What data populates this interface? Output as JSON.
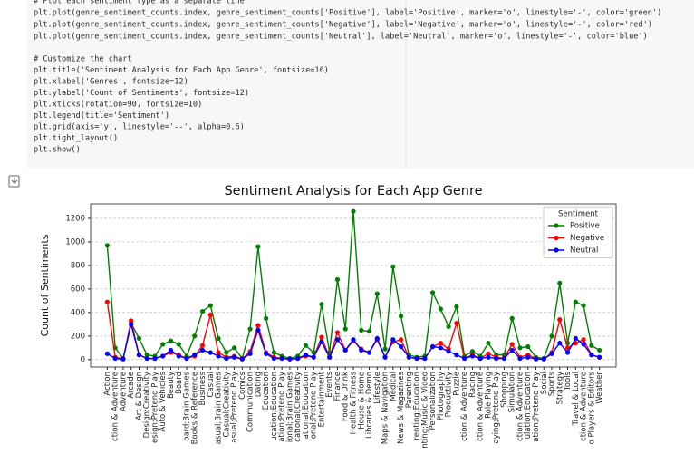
{
  "code": {
    "lines": [
      "# Plot each sentiment type as a separate line",
      "plt.plot(genre_sentiment_counts.index, genre_sentiment_counts['Positive'], label='Positive', marker='o', linestyle='-', color='green')",
      "plt.plot(genre_sentiment_counts.index, genre_sentiment_counts['Negative'], label='Negative', marker='o', linestyle='-', color='red')",
      "plt.plot(genre_sentiment_counts.index, genre_sentiment_counts['Neutral'], label='Neutral', marker='o', linestyle='-', color='blue')",
      "# Customize the chart",
      "plt.title('Sentiment Analysis for Each App Genre', fontsize=16)",
      "plt.xlabel('Genres', fontsize=12)",
      "plt.ylabel('Count of Sentiments', fontsize=12)",
      "plt.xticks(rotation=90, fontsize=10)",
      "plt.legend(title='Sentiment')",
      "plt.grid(axis='y', linestyle='--', alpha=0.6)",
      "plt.tight_layout()",
      "plt.show()"
    ]
  },
  "chart_data": {
    "type": "line",
    "title": "Sentiment Analysis for Each App Genre",
    "ylabel": "Count of Sentiments",
    "legend_title": "Sentiment",
    "legend": "upper right",
    "grid": true,
    "categories": [
      "Action",
      "ction & Adventure",
      "Adventure",
      "Arcade",
      "Art & Design",
      "Design;Creativity",
      "esign;Pretend Play",
      "Auto & Vehicles",
      "Beauty",
      "Board",
      "oard;Brain Games",
      "Books & Reference",
      "Business",
      "Casual",
      "asual;Brain Games",
      "Casual;Creativity",
      "asual;Pretend Play",
      "Comics",
      "Communication",
      "Dating",
      "Education",
      "ucation;Education",
      "ation;Pretend Play",
      "ional;Brain Games",
      "cational;Creativity",
      "ational;Education",
      "ional;Pretend Play",
      "Entertainment",
      "Events",
      "Finance",
      "Food & Drink",
      "Health & Fitness",
      "House & Home",
      "Libraries & Demo",
      "Lifestyle",
      "Maps & Navigation",
      "Medical",
      "News & Magazines",
      "Parenting",
      "renting;Education",
      "nting;Music & Video",
      "Personalization",
      "Photography",
      "Productivity",
      "Puzzle",
      "ction & Adventure",
      "Racing",
      "ction & Adventure",
      "Role Playing",
      "aying;Pretend Play",
      "Shopping",
      "Simulation",
      "ction & Adventure",
      "ulation;Education",
      "ation;Pretend Play",
      "Social",
      "Sports",
      "Strategy",
      "Tools",
      "Travel & Local",
      "ction & Adventure",
      "o Players & Editors",
      "Weather"
    ],
    "series": [
      {
        "name": "Positive",
        "color": "green",
        "values": [
          970,
          100,
          10,
          310,
          180,
          40,
          30,
          130,
          160,
          130,
          30,
          200,
          410,
          460,
          180,
          60,
          100,
          10,
          260,
          960,
          350,
          60,
          30,
          10,
          30,
          120,
          60,
          470,
          60,
          680,
          260,
          1260,
          250,
          240,
          560,
          90,
          790,
          370,
          40,
          20,
          30,
          570,
          430,
          280,
          450,
          30,
          70,
          30,
          140,
          40,
          40,
          350,
          100,
          110,
          20,
          10,
          200,
          650,
          140,
          490,
          460,
          120,
          80
        ]
      },
      {
        "name": "Negative",
        "color": "red",
        "values": [
          490,
          20,
          5,
          330,
          40,
          10,
          10,
          30,
          60,
          40,
          10,
          30,
          120,
          380,
          60,
          20,
          30,
          5,
          70,
          290,
          60,
          20,
          10,
          5,
          10,
          30,
          20,
          190,
          20,
          230,
          80,
          160,
          90,
          60,
          170,
          20,
          150,
          170,
          20,
          10,
          10,
          110,
          140,
          90,
          310,
          10,
          40,
          10,
          50,
          20,
          10,
          130,
          20,
          40,
          10,
          5,
          60,
          340,
          100,
          140,
          170,
          40,
          20
        ]
      },
      {
        "name": "Neutral",
        "color": "blue",
        "values": [
          50,
          10,
          5,
          300,
          40,
          10,
          10,
          30,
          80,
          30,
          10,
          40,
          80,
          60,
          30,
          10,
          20,
          5,
          50,
          250,
          50,
          10,
          10,
          5,
          10,
          40,
          20,
          150,
          20,
          170,
          80,
          170,
          80,
          60,
          180,
          20,
          170,
          110,
          20,
          10,
          10,
          110,
          100,
          70,
          40,
          10,
          30,
          10,
          20,
          10,
          10,
          80,
          10,
          20,
          5,
          5,
          50,
          140,
          60,
          180,
          130,
          40,
          20
        ]
      }
    ],
    "ylim": [
      -63,
      1323
    ],
    "yticks": [
      0,
      200,
      400,
      600,
      800,
      1000,
      1200
    ]
  }
}
